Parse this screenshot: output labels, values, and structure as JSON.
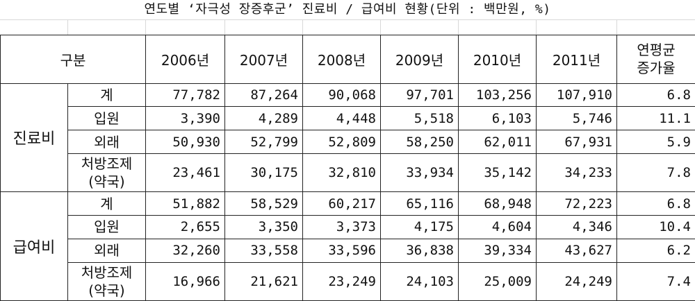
{
  "title": "연도별 ‘자극성 장증후군’ 진료비 / 급여비 현황(단위 : 백만원, %)",
  "header": {
    "category": "구분",
    "years": [
      "2006년",
      "2007년",
      "2008년",
      "2009년",
      "2010년",
      "2011년"
    ],
    "rate_line1": "연평균",
    "rate_line2": "증가율"
  },
  "groups": [
    {
      "name": "진료비",
      "rows": [
        {
          "label1": "계",
          "label2": "",
          "values": [
            "77,782",
            "87,264",
            "90,068",
            "97,701",
            "103,256",
            "107,910"
          ],
          "rate": "6.8"
        },
        {
          "label1": "입원",
          "label2": "",
          "values": [
            "3,390",
            "4,289",
            "4,448",
            "5,518",
            "6,103",
            "5,746"
          ],
          "rate": "11.1"
        },
        {
          "label1": "외래",
          "label2": "",
          "values": [
            "50,930",
            "52,799",
            "52,809",
            "58,250",
            "62,011",
            "67,931"
          ],
          "rate": "5.9"
        },
        {
          "label1": "처방조제",
          "label2": "(약국)",
          "values": [
            "23,461",
            "30,175",
            "32,810",
            "33,934",
            "35,142",
            "34,233"
          ],
          "rate": "7.8"
        }
      ]
    },
    {
      "name": "급여비",
      "rows": [
        {
          "label1": "계",
          "label2": "",
          "values": [
            "51,882",
            "58,529",
            "60,217",
            "65,116",
            "68,948",
            "72,223"
          ],
          "rate": "6.8"
        },
        {
          "label1": "입원",
          "label2": "",
          "values": [
            "2,655",
            "3,350",
            "3,373",
            "4,175",
            "4,604",
            "4,346"
          ],
          "rate": "10.4"
        },
        {
          "label1": "외래",
          "label2": "",
          "values": [
            "32,260",
            "33,558",
            "33,596",
            "36,838",
            "39,334",
            "43,627"
          ],
          "rate": "6.2"
        },
        {
          "label1": "처방조제",
          "label2": "(약국)",
          "values": [
            "16,966",
            "21,621",
            "23,249",
            "24,103",
            "25,009",
            "24,249"
          ],
          "rate": "7.4"
        }
      ]
    }
  ]
}
